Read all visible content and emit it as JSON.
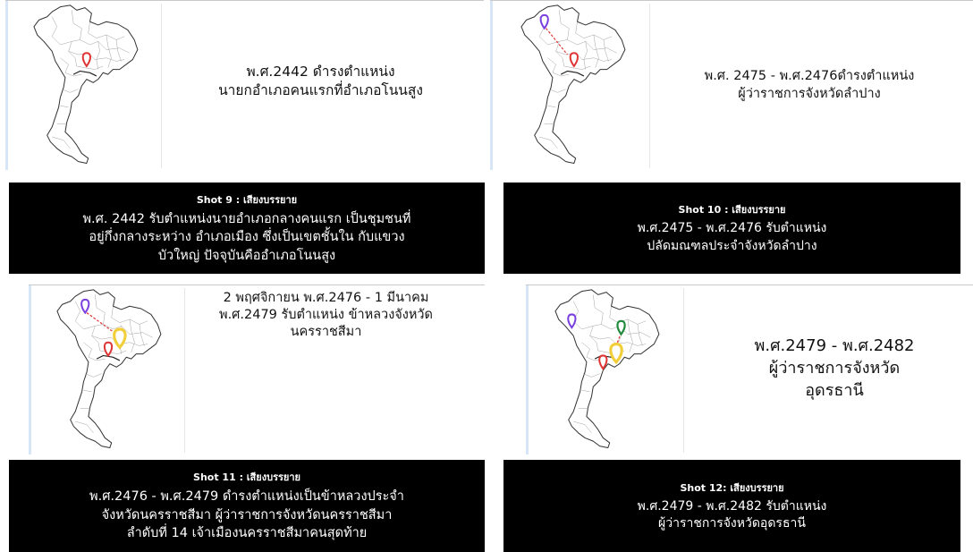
{
  "shots": [
    {
      "slide_caption": [
        "พ.ศ.2442  ดำรงตำแหน่ง",
        "นายกอำเภอคนแรกที่อำเภอโนนสูง"
      ],
      "narration_title": "Shot 9 : เสียงบรรยาย",
      "narration_lines": [
        "พ.ศ. 2442 รับตำแหน่งนายอำเภอกลางคนแรก เป็นชุมชนที่",
        "อยู่กึ่งกลางระหว่าง อำเภอเมือง ซึ่งเป็นเขตชั้นใน กับแขวง",
        "บัวใหญ่ ปัจจุบันคืออำเภอโนนสูง"
      ]
    },
    {
      "slide_caption": [
        "พ.ศ. 2475 - พ.ศ.2476ดำรงตำแหน่ง",
        "ผู้ว่าราชการจังหวัดลำปาง"
      ],
      "narration_title": "Shot 10 : เสียงบรรยาย",
      "narration_lines": [
        "พ.ศ.2475 - พ.ศ.2476 รับตำแหน่ง",
        "ปลัดมณฑลประจำจังหวัดลำปาง"
      ]
    },
    {
      "slide_caption": [
        "2 พฤศจิกายน พ.ศ.2476 -  1 มีนาคม",
        "พ.ศ.2479 รับตำแหน่ง ข้าหลวงจังหวัด",
        "นครราชสีมา"
      ],
      "narration_title": "Shot 11 : เสียงบรรยาย",
      "narration_lines": [
        "พ.ศ.2476 - พ.ศ.2479 ดำรงตำแหน่งเป็นข้าหลวงประจำ",
        "จังหวัดนครราชสีมา ผู้ว่าราชการจังหวัดนครราชสีมา",
        "ลำดับที่ 14 เจ้าเมืองนครราชสีมาคนสุดท้าย"
      ]
    },
    {
      "slide_caption": [
        "พ.ศ.2479 - พ.ศ.2482",
        "ผู้ว่าราชการจังหวัด",
        "อุดรธานี"
      ],
      "narration_title": "Shot 12: เสียงบรรยาย",
      "narration_lines": [
        "พ.ศ.2479 - พ.ศ.2482 รับตำแหน่ง",
        "ผู้ว่าราชการจังหวัดอุดรธานี"
      ]
    }
  ],
  "colors": {
    "pin_red": "#e03535",
    "pin_purple": "#7a3fe0",
    "pin_yellow": "#f2cf3a",
    "pin_green": "#1f8a3b",
    "route": "#e03535",
    "narration_bg": "#000000"
  }
}
